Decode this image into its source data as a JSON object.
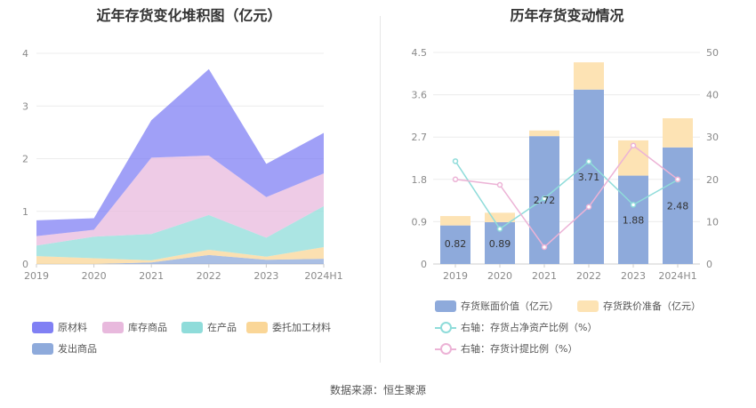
{
  "source_text": "数据来源：恒生聚源",
  "left": {
    "title": "近年存货变化堆积图（亿元）",
    "legend": [
      {
        "label": "原材料",
        "color": "#8080f4"
      },
      {
        "label": "库存商品",
        "color": "#e8b9dd"
      },
      {
        "label": "在产品",
        "color": "#8fdcda"
      },
      {
        "label": "委托加工材料",
        "color": "#fad697"
      },
      {
        "label": "发出商品",
        "color": "#8eaadb"
      }
    ]
  },
  "right": {
    "title": "历年存货变动情况",
    "legend": [
      {
        "label": "存货账面价值（亿元）",
        "color": "#8eaadb",
        "kind": "bar"
      },
      {
        "label": "存货跌价准备（亿元）",
        "color": "#fde3b4",
        "kind": "bar"
      },
      {
        "label": "右轴：存货占净资产比例（%）",
        "color": "#8fdcda",
        "kind": "line"
      },
      {
        "label": "右轴：存货计提比例（%）",
        "color": "#ecb3d6",
        "kind": "line"
      }
    ]
  },
  "chart_data": [
    {
      "type": "area",
      "stacked": true,
      "title": "近年存货变化堆积图（亿元）",
      "categories": [
        "2019",
        "2020",
        "2021",
        "2022",
        "2023",
        "2024H1"
      ],
      "ylim": [
        0,
        4
      ],
      "yticks": [
        0,
        1,
        2,
        3,
        4
      ],
      "grid": true,
      "legend_position": "bottom",
      "series": [
        {
          "name": "发出商品",
          "color": "#8eaadb",
          "values": [
            0.0,
            0.0,
            0.03,
            0.17,
            0.08,
            0.1
          ]
        },
        {
          "name": "委托加工材料",
          "color": "#fad697",
          "values": [
            0.15,
            0.11,
            0.04,
            0.1,
            0.06,
            0.22
          ]
        },
        {
          "name": "在产品",
          "color": "#8fdcda",
          "values": [
            0.2,
            0.41,
            0.5,
            0.66,
            0.36,
            0.78
          ]
        },
        {
          "name": "库存商品",
          "color": "#e8b9dd",
          "values": [
            0.18,
            0.13,
            1.45,
            1.13,
            0.77,
            0.62
          ]
        },
        {
          "name": "原材料",
          "color": "#8080f4",
          "values": [
            0.3,
            0.22,
            0.71,
            1.64,
            0.63,
            0.77
          ]
        }
      ]
    },
    {
      "type": "bar",
      "stacked": true,
      "title": "历年存货变动情况",
      "categories": [
        "2019",
        "2020",
        "2021",
        "2022",
        "2023",
        "2024H1"
      ],
      "ylim": [
        0,
        4.5
      ],
      "yticks": [
        0,
        0.9,
        1.8,
        2.7,
        3.6,
        4.5
      ],
      "y2lim": [
        0,
        50
      ],
      "y2ticks": [
        0,
        10,
        20,
        30,
        40,
        50
      ],
      "grid": true,
      "legend_position": "bottom",
      "series": [
        {
          "name": "存货账面价值（亿元）",
          "color": "#8eaadb",
          "axis": "left",
          "values": [
            0.82,
            0.89,
            2.72,
            3.71,
            1.88,
            2.48
          ],
          "labels": [
            "0.82",
            "0.89",
            "2.72",
            "3.71",
            "1.88",
            "2.48"
          ]
        },
        {
          "name": "存货跌价准备（亿元）",
          "color": "#fde3b4",
          "axis": "left",
          "values": [
            0.2,
            0.2,
            0.12,
            0.58,
            0.75,
            0.62
          ]
        }
      ],
      "lines": [
        {
          "name": "右轴：存货占净资产比例（%）",
          "color": "#8fdcda",
          "axis": "right",
          "values": [
            24.3,
            8.3,
            15.5,
            24.2,
            14.0,
            19.9
          ]
        },
        {
          "name": "右轴：存货计提比例（%）",
          "color": "#ecb3d6",
          "axis": "right",
          "values": [
            20.0,
            18.7,
            4.0,
            13.5,
            28.0,
            20.0
          ]
        }
      ]
    }
  ]
}
